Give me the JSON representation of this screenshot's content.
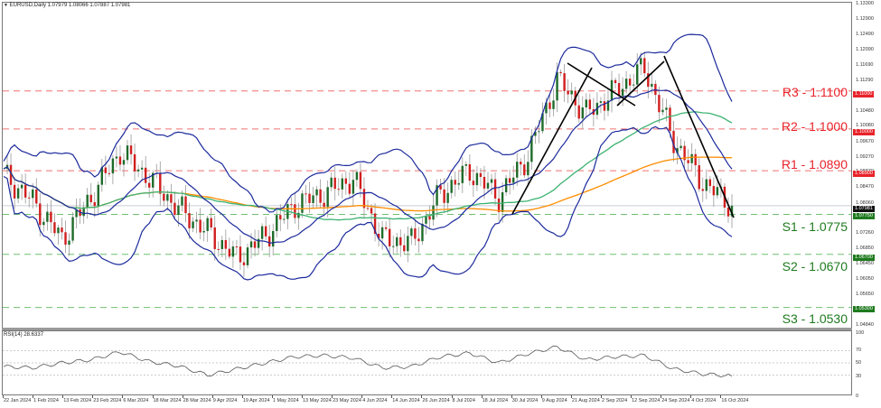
{
  "header": {
    "symbol_title": "EURUSD,Daily  1.07979 1.08066 1.07887 1.07981",
    "symbol": "EURUSD",
    "timeframe": "Daily",
    "open": "1.07979",
    "high": "1.08066",
    "low": "1.07887",
    "close": "1.07981"
  },
  "rsi_panel": {
    "title": "RSI(14) 28.6337",
    "value": "28.6337",
    "levels": [
      "100",
      "70",
      "50",
      "30",
      "0"
    ]
  },
  "price_axis": {
    "labels": [
      "1.13300",
      "1.12900",
      "1.12490",
      "1.12090",
      "1.11690",
      "1.11290",
      "1.10880",
      "1.10480",
      "1.10080",
      "1.09670",
      "1.09270",
      "1.08870",
      "1.08470",
      "1.08060",
      "1.07660",
      "1.07260",
      "1.06850",
      "1.06450",
      "1.06050",
      "1.05650",
      "1.05250",
      "1.04840"
    ],
    "tags": {
      "r3": "1.11000",
      "r2": "1.10000",
      "r1": "1.08900",
      "current": "1.07981",
      "s1": "1.07750",
      "s2": "1.06700",
      "s3": "1.05300"
    }
  },
  "levels": {
    "r3": {
      "label": "R3 - 1.1100",
      "color": "#e8232a"
    },
    "r2": {
      "label": "R2 - 1.1000",
      "color": "#e8232a"
    },
    "r1": {
      "label": "R1 - 1.0890",
      "color": "#e8232a"
    },
    "s1": {
      "label": "S1 - 1.0775",
      "color": "#1e7a1e"
    },
    "s2": {
      "label": "S2 - 1.0670",
      "color": "#1e7a1e"
    },
    "s3": {
      "label": "S3 - 1.0530",
      "color": "#1e7a1e"
    }
  },
  "time_axis": {
    "labels": [
      "22 Jan 2024",
      "1 Feb 2024",
      "13 Feb 2024",
      "23 Feb 2024",
      "6 Mar 2024",
      "18 Mar 2024",
      "28 Mar 2024",
      "9 Apr 2024",
      "19 Apr 2024",
      "1 May 2024",
      "13 May 2024",
      "23 May 2024",
      "4 Jun 2024",
      "14 Jun 2024",
      "26 Jun 2024",
      "8 Jul 2024",
      "18 Jul 2024",
      "30 Jul 2024",
      "9 Aug 2024",
      "21 Aug 2024",
      "2 Sep 2024",
      "12 Sep 2024",
      "24 Sep 2024",
      "4 Oct 2024",
      "16 Oct 2024"
    ]
  },
  "colors": {
    "bull_candle": "#1e6b2a",
    "bear_candle": "#d11f1f",
    "bollinger": "#1c2a9c",
    "ma_fast": "#3cb371",
    "ma_slow": "#ff8c00",
    "resistance": "#f07070",
    "support": "#6fbf6f",
    "trendline": "#000000",
    "rsi_line": "#555555"
  },
  "chart_data": [
    {
      "type": "candlestick",
      "title": "EURUSD, Daily",
      "xlabel": "",
      "ylabel": "Price",
      "ylim": [
        1.0484,
        1.133
      ],
      "x_ticks": [
        "22 Jan 2024",
        "1 Feb 2024",
        "13 Feb 2024",
        "23 Feb 2024",
        "6 Mar 2024",
        "18 Mar 2024",
        "28 Mar 2024",
        "9 Apr 2024",
        "19 Apr 2024",
        "1 May 2024",
        "13 May 2024",
        "23 May 2024",
        "4 Jun 2024",
        "14 Jun 2024",
        "26 Jun 2024",
        "8 Jul 2024",
        "18 Jul 2024",
        "30 Jul 2024",
        "9 Aug 2024",
        "21 Aug 2024",
        "2 Sep 2024",
        "12 Sep 2024",
        "24 Sep 2024",
        "4 Oct 2024",
        "16 Oct 2024"
      ],
      "last_ohlc": {
        "open": 1.07979,
        "high": 1.08066,
        "low": 1.07887,
        "close": 1.07981
      },
      "approx_close_path": [
        {
          "date": "22 Jan 2024",
          "close": 1.088
        },
        {
          "date": "1 Feb 2024",
          "close": 1.081
        },
        {
          "date": "13 Feb 2024",
          "close": 1.071
        },
        {
          "date": "23 Feb 2024",
          "close": 1.082
        },
        {
          "date": "6 Mar 2024",
          "close": 1.094
        },
        {
          "date": "18 Mar 2024",
          "close": 1.087
        },
        {
          "date": "28 Mar 2024",
          "close": 1.079
        },
        {
          "date": "9 Apr 2024",
          "close": 1.073
        },
        {
          "date": "19 Apr 2024",
          "close": 1.066
        },
        {
          "date": "1 May 2024",
          "close": 1.072
        },
        {
          "date": "13 May 2024",
          "close": 1.08
        },
        {
          "date": "23 May 2024",
          "close": 1.083
        },
        {
          "date": "4 Jun 2024",
          "close": 1.087
        },
        {
          "date": "14 Jun 2024",
          "close": 1.071
        },
        {
          "date": "26 Jun 2024",
          "close": 1.07
        },
        {
          "date": "8 Jul 2024",
          "close": 1.083
        },
        {
          "date": "18 Jul 2024",
          "close": 1.089
        },
        {
          "date": "30 Jul 2024",
          "close": 1.082
        },
        {
          "date": "9 Aug 2024",
          "close": 1.093
        },
        {
          "date": "21 Aug 2024",
          "close": 1.113
        },
        {
          "date": "2 Sep 2024",
          "close": 1.104
        },
        {
          "date": "12 Sep 2024",
          "close": 1.11
        },
        {
          "date": "24 Sep 2024",
          "close": 1.116
        },
        {
          "date": "4 Oct 2024",
          "close": 1.097
        },
        {
          "date": "16 Oct 2024",
          "close": 1.086
        },
        {
          "date": "latest",
          "close": 1.0798
        }
      ],
      "overlays": [
        "Bollinger Bands (upper/middle/lower)",
        "Moving average (green)",
        "Moving average (orange)",
        "Trendlines (black)"
      ],
      "horizontal_levels": [
        {
          "name": "R3",
          "value": 1.11
        },
        {
          "name": "R2",
          "value": 1.1
        },
        {
          "name": "R1",
          "value": 1.089
        },
        {
          "name": "S1",
          "value": 1.0775
        },
        {
          "name": "S2",
          "value": 1.067
        },
        {
          "name": "S3",
          "value": 1.053
        }
      ],
      "grid": false
    },
    {
      "type": "line",
      "title": "RSI(14) 28.6337",
      "ylim": [
        0,
        100
      ],
      "y_ticks": [
        0,
        30,
        50,
        70,
        100
      ],
      "current_value": 28.6337,
      "approx_values": [
        {
          "date": "22 Jan 2024",
          "value": 44
        },
        {
          "date": "1 Feb 2024",
          "value": 42
        },
        {
          "date": "13 Feb 2024",
          "value": 50
        },
        {
          "date": "23 Feb 2024",
          "value": 55
        },
        {
          "date": "6 Mar 2024",
          "value": 68
        },
        {
          "date": "18 Mar 2024",
          "value": 52
        },
        {
          "date": "28 Mar 2024",
          "value": 45
        },
        {
          "date": "9 Apr 2024",
          "value": 30
        },
        {
          "date": "19 Apr 2024",
          "value": 40
        },
        {
          "date": "1 May 2024",
          "value": 50
        },
        {
          "date": "13 May 2024",
          "value": 60
        },
        {
          "date": "23 May 2024",
          "value": 62
        },
        {
          "date": "4 Jun 2024",
          "value": 58
        },
        {
          "date": "14 Jun 2024",
          "value": 42
        },
        {
          "date": "26 Jun 2024",
          "value": 44
        },
        {
          "date": "8 Jul 2024",
          "value": 60
        },
        {
          "date": "18 Jul 2024",
          "value": 66
        },
        {
          "date": "30 Jul 2024",
          "value": 50
        },
        {
          "date": "9 Aug 2024",
          "value": 65
        },
        {
          "date": "21 Aug 2024",
          "value": 76
        },
        {
          "date": "2 Sep 2024",
          "value": 55
        },
        {
          "date": "12 Sep 2024",
          "value": 60
        },
        {
          "date": "24 Sep 2024",
          "value": 62
        },
        {
          "date": "4 Oct 2024",
          "value": 40
        },
        {
          "date": "16 Oct 2024",
          "value": 32
        },
        {
          "date": "latest",
          "value": 28.6
        }
      ]
    }
  ]
}
